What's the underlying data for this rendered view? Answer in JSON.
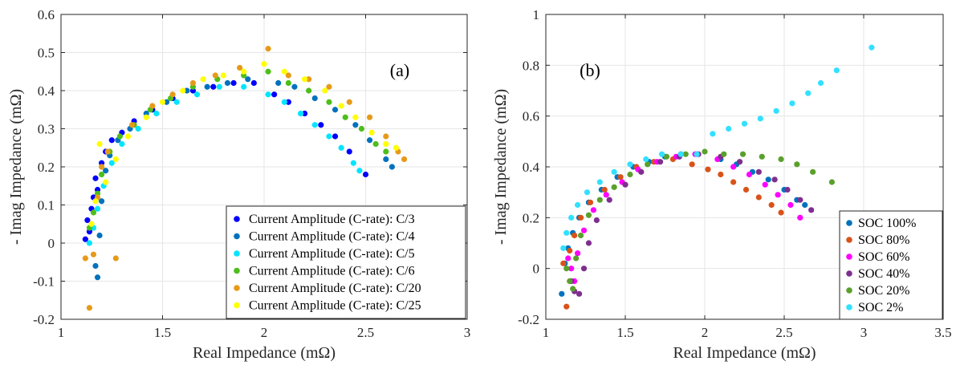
{
  "chart_data": [
    {
      "type": "scatter",
      "panel_label": "(a)",
      "xlabel": "Real Impedance (mΩ)",
      "ylabel": "- Imag Impedance (mΩ)",
      "xlim": [
        1,
        3
      ],
      "ylim": [
        -0.2,
        0.6
      ],
      "xticks": [
        "1",
        "1.5",
        "2",
        "2.5",
        "3"
      ],
      "yticks": [
        "-0.2",
        "-0.1",
        "0",
        "0.1",
        "0.2",
        "0.3",
        "0.4",
        "0.5",
        "0.6"
      ],
      "grid": true,
      "legend_position": "bottom-right",
      "series": [
        {
          "name": "Current Amplitude (C-rate): C/3",
          "color": "#0000ff",
          "points": [
            [
              1.12,
              0.01
            ],
            [
              1.13,
              0.06
            ],
            [
              1.14,
              0.03
            ],
            [
              1.15,
              0.09
            ],
            [
              1.16,
              0.12
            ],
            [
              1.17,
              0.17
            ],
            [
              1.18,
              0.14
            ],
            [
              1.2,
              0.21
            ],
            [
              1.22,
              0.24
            ],
            [
              1.25,
              0.27
            ],
            [
              1.3,
              0.29
            ],
            [
              1.36,
              0.32
            ],
            [
              1.45,
              0.35
            ],
            [
              1.55,
              0.38
            ],
            [
              1.65,
              0.4
            ],
            [
              1.75,
              0.41
            ],
            [
              1.85,
              0.42
            ],
            [
              1.95,
              0.42
            ],
            [
              2.05,
              0.39
            ],
            [
              2.12,
              0.37
            ],
            [
              2.2,
              0.34
            ],
            [
              2.28,
              0.31
            ],
            [
              2.35,
              0.28
            ],
            [
              2.42,
              0.24
            ],
            [
              2.5,
              0.18
            ]
          ]
        },
        {
          "name": "Current Amplitude (C-rate): C/4",
          "color": "#0072bd",
          "points": [
            [
              1.17,
              -0.06
            ],
            [
              1.18,
              -0.09
            ],
            [
              1.19,
              0.02
            ],
            [
              1.2,
              0.11
            ],
            [
              1.22,
              0.19
            ],
            [
              1.24,
              0.23
            ],
            [
              1.28,
              0.27
            ],
            [
              1.34,
              0.3
            ],
            [
              1.42,
              0.34
            ],
            [
              1.52,
              0.37
            ],
            [
              1.62,
              0.4
            ],
            [
              1.72,
              0.41
            ],
            [
              1.82,
              0.42
            ],
            [
              1.92,
              0.43
            ],
            [
              2.07,
              0.42
            ],
            [
              2.15,
              0.41
            ],
            [
              2.25,
              0.38
            ],
            [
              2.35,
              0.35
            ],
            [
              2.45,
              0.31
            ],
            [
              2.52,
              0.27
            ],
            [
              2.6,
              0.22
            ],
            [
              2.63,
              0.2
            ]
          ]
        },
        {
          "name": "Current Amplitude (C-rate): C/5",
          "color": "#00e5ff",
          "points": [
            [
              1.14,
              0.0
            ],
            [
              1.16,
              0.04
            ],
            [
              1.18,
              0.09
            ],
            [
              1.21,
              0.15
            ],
            [
              1.25,
              0.21
            ],
            [
              1.3,
              0.26
            ],
            [
              1.38,
              0.3
            ],
            [
              1.47,
              0.34
            ],
            [
              1.57,
              0.37
            ],
            [
              1.67,
              0.39
            ],
            [
              1.78,
              0.41
            ],
            [
              1.9,
              0.41
            ],
            [
              2.02,
              0.39
            ],
            [
              2.1,
              0.37
            ],
            [
              2.18,
              0.34
            ],
            [
              2.25,
              0.31
            ],
            [
              2.32,
              0.28
            ],
            [
              2.38,
              0.25
            ],
            [
              2.44,
              0.21
            ],
            [
              2.47,
              0.19
            ]
          ]
        },
        {
          "name": "Current Amplitude (C-rate): C/6",
          "color": "#4dbe1a",
          "points": [
            [
              1.14,
              0.04
            ],
            [
              1.16,
              0.08
            ],
            [
              1.18,
              0.13
            ],
            [
              1.2,
              0.18
            ],
            [
              1.24,
              0.24
            ],
            [
              1.29,
              0.28
            ],
            [
              1.36,
              0.31
            ],
            [
              1.44,
              0.35
            ],
            [
              1.54,
              0.38
            ],
            [
              1.65,
              0.41
            ],
            [
              1.77,
              0.43
            ],
            [
              1.9,
              0.44
            ],
            [
              2.02,
              0.45
            ],
            [
              2.12,
              0.42
            ],
            [
              2.22,
              0.4
            ],
            [
              2.32,
              0.37
            ],
            [
              2.4,
              0.33
            ],
            [
              2.48,
              0.3
            ],
            [
              2.55,
              0.26
            ],
            [
              2.6,
              0.24
            ]
          ]
        },
        {
          "name": "Current Amplitude (C-rate): C/20",
          "color": "#e69a1a",
          "points": [
            [
              1.12,
              -0.04
            ],
            [
              1.14,
              -0.17
            ],
            [
              1.16,
              -0.03
            ],
            [
              1.18,
              0.12
            ],
            [
              1.2,
              0.2
            ],
            [
              1.23,
              0.24
            ],
            [
              1.27,
              -0.04
            ],
            [
              1.35,
              0.31
            ],
            [
              1.45,
              0.36
            ],
            [
              1.55,
              0.39
            ],
            [
              1.65,
              0.42
            ],
            [
              1.76,
              0.44
            ],
            [
              1.88,
              0.46
            ],
            [
              2.02,
              0.51
            ],
            [
              2.12,
              0.44
            ],
            [
              2.22,
              0.43
            ],
            [
              2.32,
              0.41
            ],
            [
              2.42,
              0.37
            ],
            [
              2.52,
              0.33
            ],
            [
              2.6,
              0.28
            ],
            [
              2.66,
              0.24
            ],
            [
              2.69,
              0.22
            ]
          ]
        },
        {
          "name": "Current Amplitude (C-rate): C/25",
          "color": "#ffff00",
          "points": [
            [
              1.15,
              0.05
            ],
            [
              1.17,
              0.11
            ],
            [
              1.19,
              0.26
            ],
            [
              1.22,
              0.16
            ],
            [
              1.27,
              0.22
            ],
            [
              1.33,
              0.28
            ],
            [
              1.42,
              0.33
            ],
            [
              1.5,
              0.37
            ],
            [
              1.6,
              0.4
            ],
            [
              1.7,
              0.43
            ],
            [
              1.8,
              0.44
            ],
            [
              1.9,
              0.45
            ],
            [
              2.0,
              0.47
            ],
            [
              2.1,
              0.45
            ],
            [
              2.2,
              0.43
            ],
            [
              2.3,
              0.4
            ],
            [
              2.38,
              0.36
            ],
            [
              2.45,
              0.33
            ],
            [
              2.53,
              0.29
            ],
            [
              2.6,
              0.26
            ],
            [
              2.65,
              0.25
            ]
          ]
        }
      ]
    },
    {
      "type": "scatter",
      "panel_label": "(b)",
      "xlabel": "Real Impedance (mΩ)",
      "ylabel": "- Imag Impedance (mΩ)",
      "xlim": [
        1,
        3.5
      ],
      "ylim": [
        -0.2,
        1
      ],
      "xticks": [
        "1",
        "1.5",
        "2",
        "2.5",
        "3",
        "3.5"
      ],
      "yticks": [
        "-0.2",
        "0",
        "0.2",
        "0.4",
        "0.6",
        "0.8",
        "1"
      ],
      "grid": true,
      "legend_position": "bottom-right",
      "series": [
        {
          "name": "SOC 100%",
          "color": "#0072bd",
          "points": [
            [
              1.1,
              -0.1
            ],
            [
              1.12,
              0.02
            ],
            [
              1.14,
              0.08
            ],
            [
              1.17,
              0.14
            ],
            [
              1.21,
              0.2
            ],
            [
              1.27,
              0.26
            ],
            [
              1.35,
              0.31
            ],
            [
              1.45,
              0.36
            ],
            [
              1.55,
              0.4
            ],
            [
              1.65,
              0.42
            ],
            [
              1.75,
              0.44
            ],
            [
              1.85,
              0.45
            ],
            [
              1.95,
              0.45
            ],
            [
              2.1,
              0.43
            ],
            [
              2.2,
              0.41
            ],
            [
              2.3,
              0.38
            ],
            [
              2.4,
              0.35
            ],
            [
              2.5,
              0.31
            ],
            [
              2.58,
              0.27
            ],
            [
              2.63,
              0.25
            ]
          ]
        },
        {
          "name": "SOC 80%",
          "color": "#d95319",
          "points": [
            [
              1.11,
              0.02
            ],
            [
              1.13,
              -0.15
            ],
            [
              1.15,
              0.07
            ],
            [
              1.18,
              0.13
            ],
            [
              1.22,
              0.2
            ],
            [
              1.28,
              0.26
            ],
            [
              1.37,
              0.31
            ],
            [
              1.47,
              0.36
            ],
            [
              1.57,
              0.4
            ],
            [
              1.68,
              0.42
            ],
            [
              1.8,
              0.43
            ],
            [
              1.92,
              0.41
            ],
            [
              2.02,
              0.39
            ],
            [
              2.1,
              0.37
            ],
            [
              2.18,
              0.34
            ],
            [
              2.26,
              0.31
            ],
            [
              2.34,
              0.28
            ],
            [
              2.42,
              0.25
            ],
            [
              2.48,
              0.22
            ]
          ]
        },
        {
          "name": "SOC 60%",
          "color": "#ff00ff",
          "points": [
            [
              1.14,
              0.04
            ],
            [
              1.16,
              0.0
            ],
            [
              1.18,
              -0.05
            ],
            [
              1.2,
              0.06
            ],
            [
              1.24,
              0.15
            ],
            [
              1.3,
              0.23
            ],
            [
              1.38,
              0.29
            ],
            [
              1.48,
              0.34
            ],
            [
              1.58,
              0.39
            ],
            [
              1.7,
              0.42
            ],
            [
              1.82,
              0.44
            ],
            [
              1.94,
              0.45
            ],
            [
              2.08,
              0.43
            ],
            [
              2.18,
              0.4
            ],
            [
              2.28,
              0.37
            ],
            [
              2.38,
              0.33
            ],
            [
              2.46,
              0.29
            ],
            [
              2.54,
              0.25
            ],
            [
              2.6,
              0.2
            ]
          ]
        },
        {
          "name": "SOC 40%",
          "color": "#7e2f8e",
          "points": [
            [
              1.16,
              -0.05
            ],
            [
              1.18,
              -0.09
            ],
            [
              1.21,
              -0.1
            ],
            [
              1.24,
              0.0
            ],
            [
              1.27,
              0.1
            ],
            [
              1.32,
              0.19
            ],
            [
              1.4,
              0.27
            ],
            [
              1.5,
              0.33
            ],
            [
              1.6,
              0.38
            ],
            [
              1.72,
              0.42
            ],
            [
              1.84,
              0.44
            ],
            [
              1.96,
              0.45
            ],
            [
              2.1,
              0.44
            ],
            [
              2.22,
              0.42
            ],
            [
              2.34,
              0.38
            ],
            [
              2.44,
              0.35
            ],
            [
              2.52,
              0.31
            ],
            [
              2.6,
              0.27
            ],
            [
              2.67,
              0.23
            ]
          ]
        },
        {
          "name": "SOC 20%",
          "color": "#5aa02c",
          "points": [
            [
              1.13,
              0.0
            ],
            [
              1.15,
              -0.05
            ],
            [
              1.17,
              -0.08
            ],
            [
              1.19,
              0.04
            ],
            [
              1.22,
              0.13
            ],
            [
              1.27,
              0.21
            ],
            [
              1.34,
              0.27
            ],
            [
              1.43,
              0.32
            ],
            [
              1.53,
              0.37
            ],
            [
              1.64,
              0.41
            ],
            [
              1.76,
              0.44
            ],
            [
              1.88,
              0.45
            ],
            [
              2.0,
              0.46
            ],
            [
              2.12,
              0.45
            ],
            [
              2.24,
              0.45
            ],
            [
              2.36,
              0.44
            ],
            [
              2.48,
              0.43
            ],
            [
              2.58,
              0.41
            ],
            [
              2.68,
              0.38
            ],
            [
              2.8,
              0.34
            ]
          ]
        },
        {
          "name": "SOC 2%",
          "color": "#33e0ff",
          "points": [
            [
              1.11,
              0.08
            ],
            [
              1.13,
              0.14
            ],
            [
              1.16,
              0.2
            ],
            [
              1.2,
              0.25
            ],
            [
              1.26,
              0.3
            ],
            [
              1.34,
              0.34
            ],
            [
              1.43,
              0.38
            ],
            [
              1.53,
              0.41
            ],
            [
              1.63,
              0.43
            ],
            [
              1.73,
              0.45
            ],
            [
              1.85,
              0.45
            ],
            [
              1.95,
              0.45
            ],
            [
              2.05,
              0.53
            ],
            [
              2.15,
              0.55
            ],
            [
              2.25,
              0.57
            ],
            [
              2.35,
              0.59
            ],
            [
              2.45,
              0.62
            ],
            [
              2.55,
              0.65
            ],
            [
              2.65,
              0.69
            ],
            [
              2.73,
              0.73
            ],
            [
              2.83,
              0.78
            ],
            [
              3.05,
              0.87
            ]
          ]
        }
      ]
    }
  ]
}
